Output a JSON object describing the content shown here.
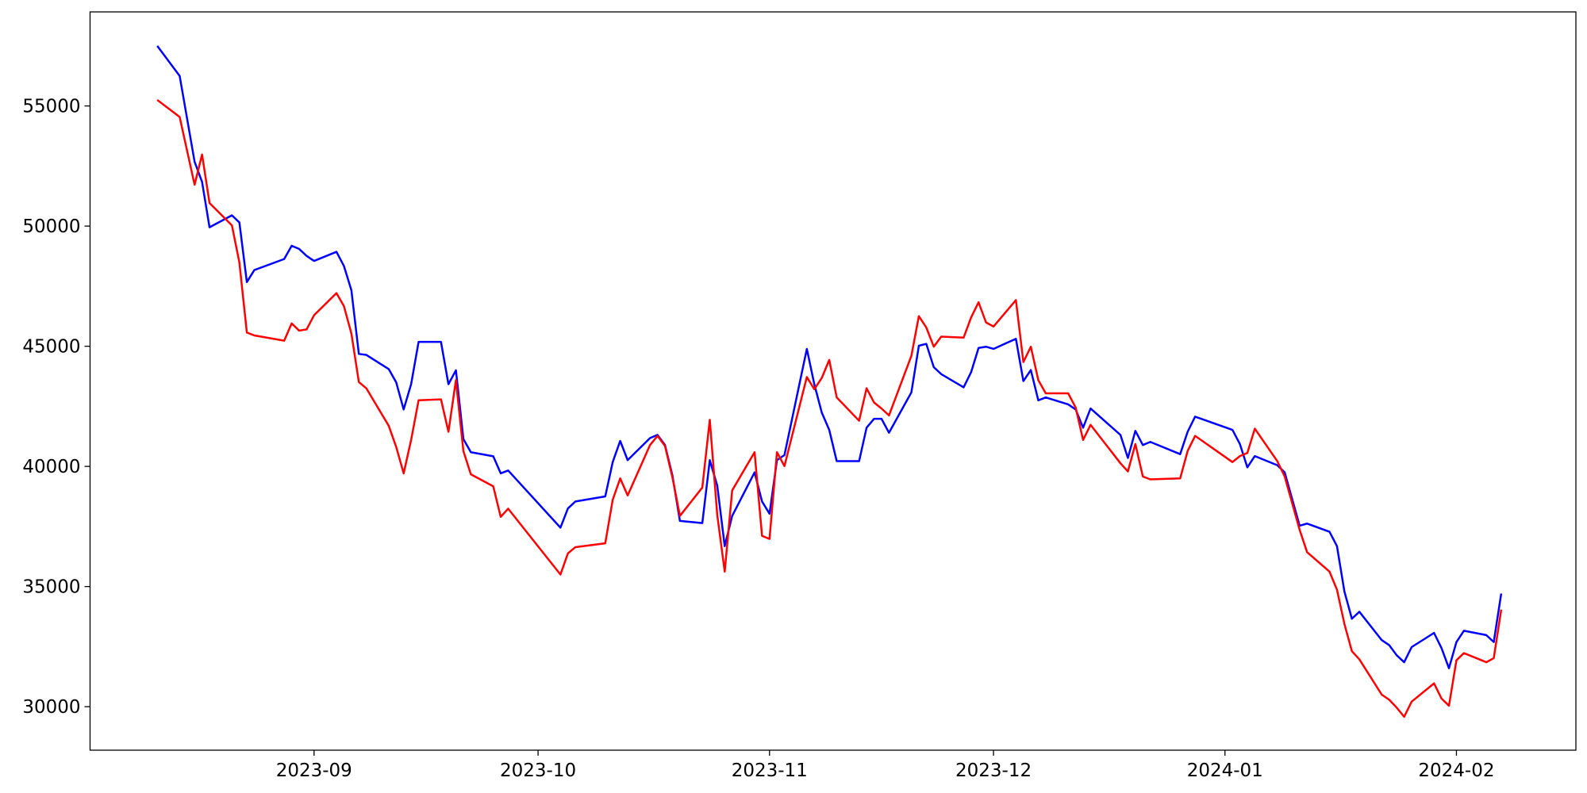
{
  "chart_data": {
    "type": "line",
    "x": [
      19580,
      19583,
      19585,
      19586,
      19587,
      19590,
      19591,
      19592,
      19593,
      19597,
      19598,
      19599,
      19600,
      19601,
      19604,
      19605,
      19606,
      19607,
      19608,
      19611,
      19612,
      19613,
      19614,
      19615,
      19618,
      19619,
      19620,
      19621,
      19622,
      19625,
      19626,
      19627,
      19634,
      19635,
      19636,
      19640,
      19641,
      19642,
      19643,
      19646,
      19647,
      19648,
      19649,
      19650,
      19653,
      19654,
      19655,
      19656,
      19657,
      19660,
      19661,
      19662,
      19663,
      19664,
      19667,
      19668,
      19669,
      19670,
      19671,
      19674,
      19675,
      19676,
      19677,
      19678,
      19681,
      19682,
      19683,
      19684,
      19685,
      19688,
      19689,
      19690,
      19691,
      19692,
      19695,
      19696,
      19697,
      19698,
      19699,
      19702,
      19703,
      19704,
      19705,
      19709,
      19710,
      19711,
      19712,
      19713,
      19717,
      19718,
      19719,
      19724,
      19725,
      19726,
      19727,
      19730,
      19731,
      19733,
      19734,
      19737,
      19738,
      19739,
      19740,
      19741,
      19744,
      19745,
      19746,
      19747,
      19748,
      19751,
      19752,
      19753,
      19754,
      19755,
      19758,
      19759,
      19760
    ],
    "series": [
      {
        "color": "#0000ff",
        "values": [
          57500,
          56250,
          52680,
          51840,
          49950,
          50450,
          50150,
          47670,
          48170,
          48630,
          49180,
          49050,
          48760,
          48550,
          48930,
          48340,
          47330,
          44680,
          44640,
          44050,
          43500,
          42370,
          43420,
          45180,
          45180,
          43420,
          44000,
          41140,
          40590,
          40420,
          39710,
          39830,
          37450,
          38250,
          38540,
          38750,
          40180,
          41060,
          40260,
          41180,
          41310,
          40890,
          39620,
          37730,
          37640,
          40260,
          39200,
          36680,
          37940,
          39750,
          38540,
          38030,
          40260,
          40470,
          44890,
          43420,
          42240,
          41520,
          40220,
          40220,
          41610,
          41980,
          41980,
          41400,
          43080,
          45020,
          45100,
          44130,
          43840,
          43290,
          43920,
          44930,
          44980,
          44890,
          45310,
          43550,
          44010,
          42750,
          42870,
          42580,
          42370,
          41610,
          42410,
          41310,
          40350,
          41480,
          40890,
          41020,
          40510,
          41440,
          42070,
          41520,
          40930,
          39960,
          40430,
          40050,
          39750,
          37530,
          37620,
          37280,
          36680,
          34790,
          33660,
          33950,
          32770,
          32560,
          32140,
          31850,
          32480,
          33070,
          32440,
          31600,
          32690,
          33160,
          32980,
          32690,
          34710
        ]
      },
      {
        "color": "#ff0000",
        "values": [
          55250,
          54540,
          51720,
          52980,
          50960,
          50030,
          48480,
          45570,
          45450,
          45230,
          45950,
          45650,
          45700,
          46290,
          47210,
          46670,
          45530,
          43510,
          43250,
          41690,
          40810,
          39710,
          41100,
          42750,
          42790,
          41440,
          43590,
          40640,
          39670,
          39170,
          37900,
          38240,
          35500,
          36380,
          36640,
          36800,
          38610,
          39500,
          38790,
          40890,
          41270,
          40850,
          39540,
          37940,
          39120,
          41940,
          37980,
          35620,
          39000,
          40590,
          37110,
          36980,
          40590,
          40010,
          43720,
          43210,
          43680,
          44430,
          42870,
          41900,
          43250,
          42660,
          42410,
          42120,
          44600,
          46250,
          45780,
          44980,
          45400,
          45360,
          46200,
          46830,
          45990,
          45820,
          46920,
          44340,
          44980,
          43590,
          43040,
          43040,
          42450,
          41100,
          41730,
          40130,
          39790,
          40930,
          39580,
          39460,
          39500,
          40640,
          41270,
          40180,
          40430,
          40560,
          41570,
          40220,
          39580,
          37360,
          36430,
          35620,
          34870,
          33440,
          32310,
          31970,
          30500,
          30290,
          29960,
          29580,
          30210,
          30970,
          30340,
          30040,
          31930,
          32230,
          31850,
          32020,
          34040
        ]
      }
    ],
    "xlim": [
      19571,
      19770
    ],
    "xticks": [
      {
        "value": 19601,
        "label": "2023-09"
      },
      {
        "value": 19631,
        "label": "2023-10"
      },
      {
        "value": 19662,
        "label": "2023-11"
      },
      {
        "value": 19692,
        "label": "2023-12"
      },
      {
        "value": 19723,
        "label": "2024-01"
      },
      {
        "value": 19754,
        "label": "2024-02"
      }
    ],
    "ylim": [
      28190,
      58914
    ],
    "yticks": [
      30000,
      35000,
      40000,
      45000,
      50000,
      55000
    ],
    "grid": false
  }
}
